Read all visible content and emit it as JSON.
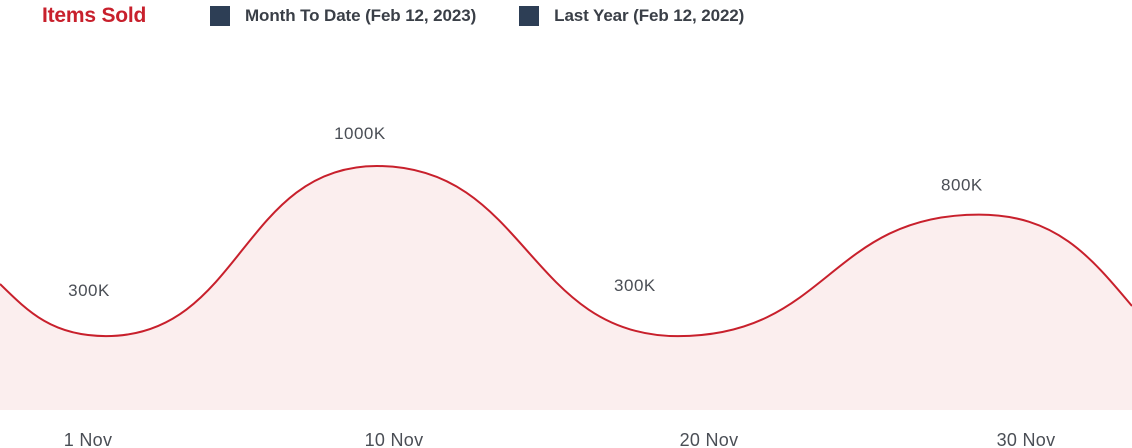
{
  "header": {
    "title": "Items Sold",
    "legend": [
      {
        "label": "Month To Date  (Feb 12, 2023)",
        "color": "#2d3e55"
      },
      {
        "label": "Last Year  (Feb 12, 2022)",
        "color": "#2d3e55"
      }
    ]
  },
  "chart_data": {
    "type": "area",
    "title": "Items Sold",
    "x_ticks": [
      "1 Nov",
      "10 Nov",
      "20 Nov",
      "30 Nov"
    ],
    "series": [
      {
        "name": "Month To Date  (Feb 12, 2023)",
        "color": "#c8202c",
        "fill": "#fbeeee",
        "points": [
          {
            "x": 1,
            "y": 300,
            "label": "300K"
          },
          {
            "x": 10,
            "y": 1000,
            "label": "1000K"
          },
          {
            "x": 20,
            "y": 300,
            "label": "300K"
          },
          {
            "x": 30,
            "y": 800,
            "label": "800K"
          }
        ]
      }
    ],
    "y_unit": "K",
    "grid": false
  }
}
